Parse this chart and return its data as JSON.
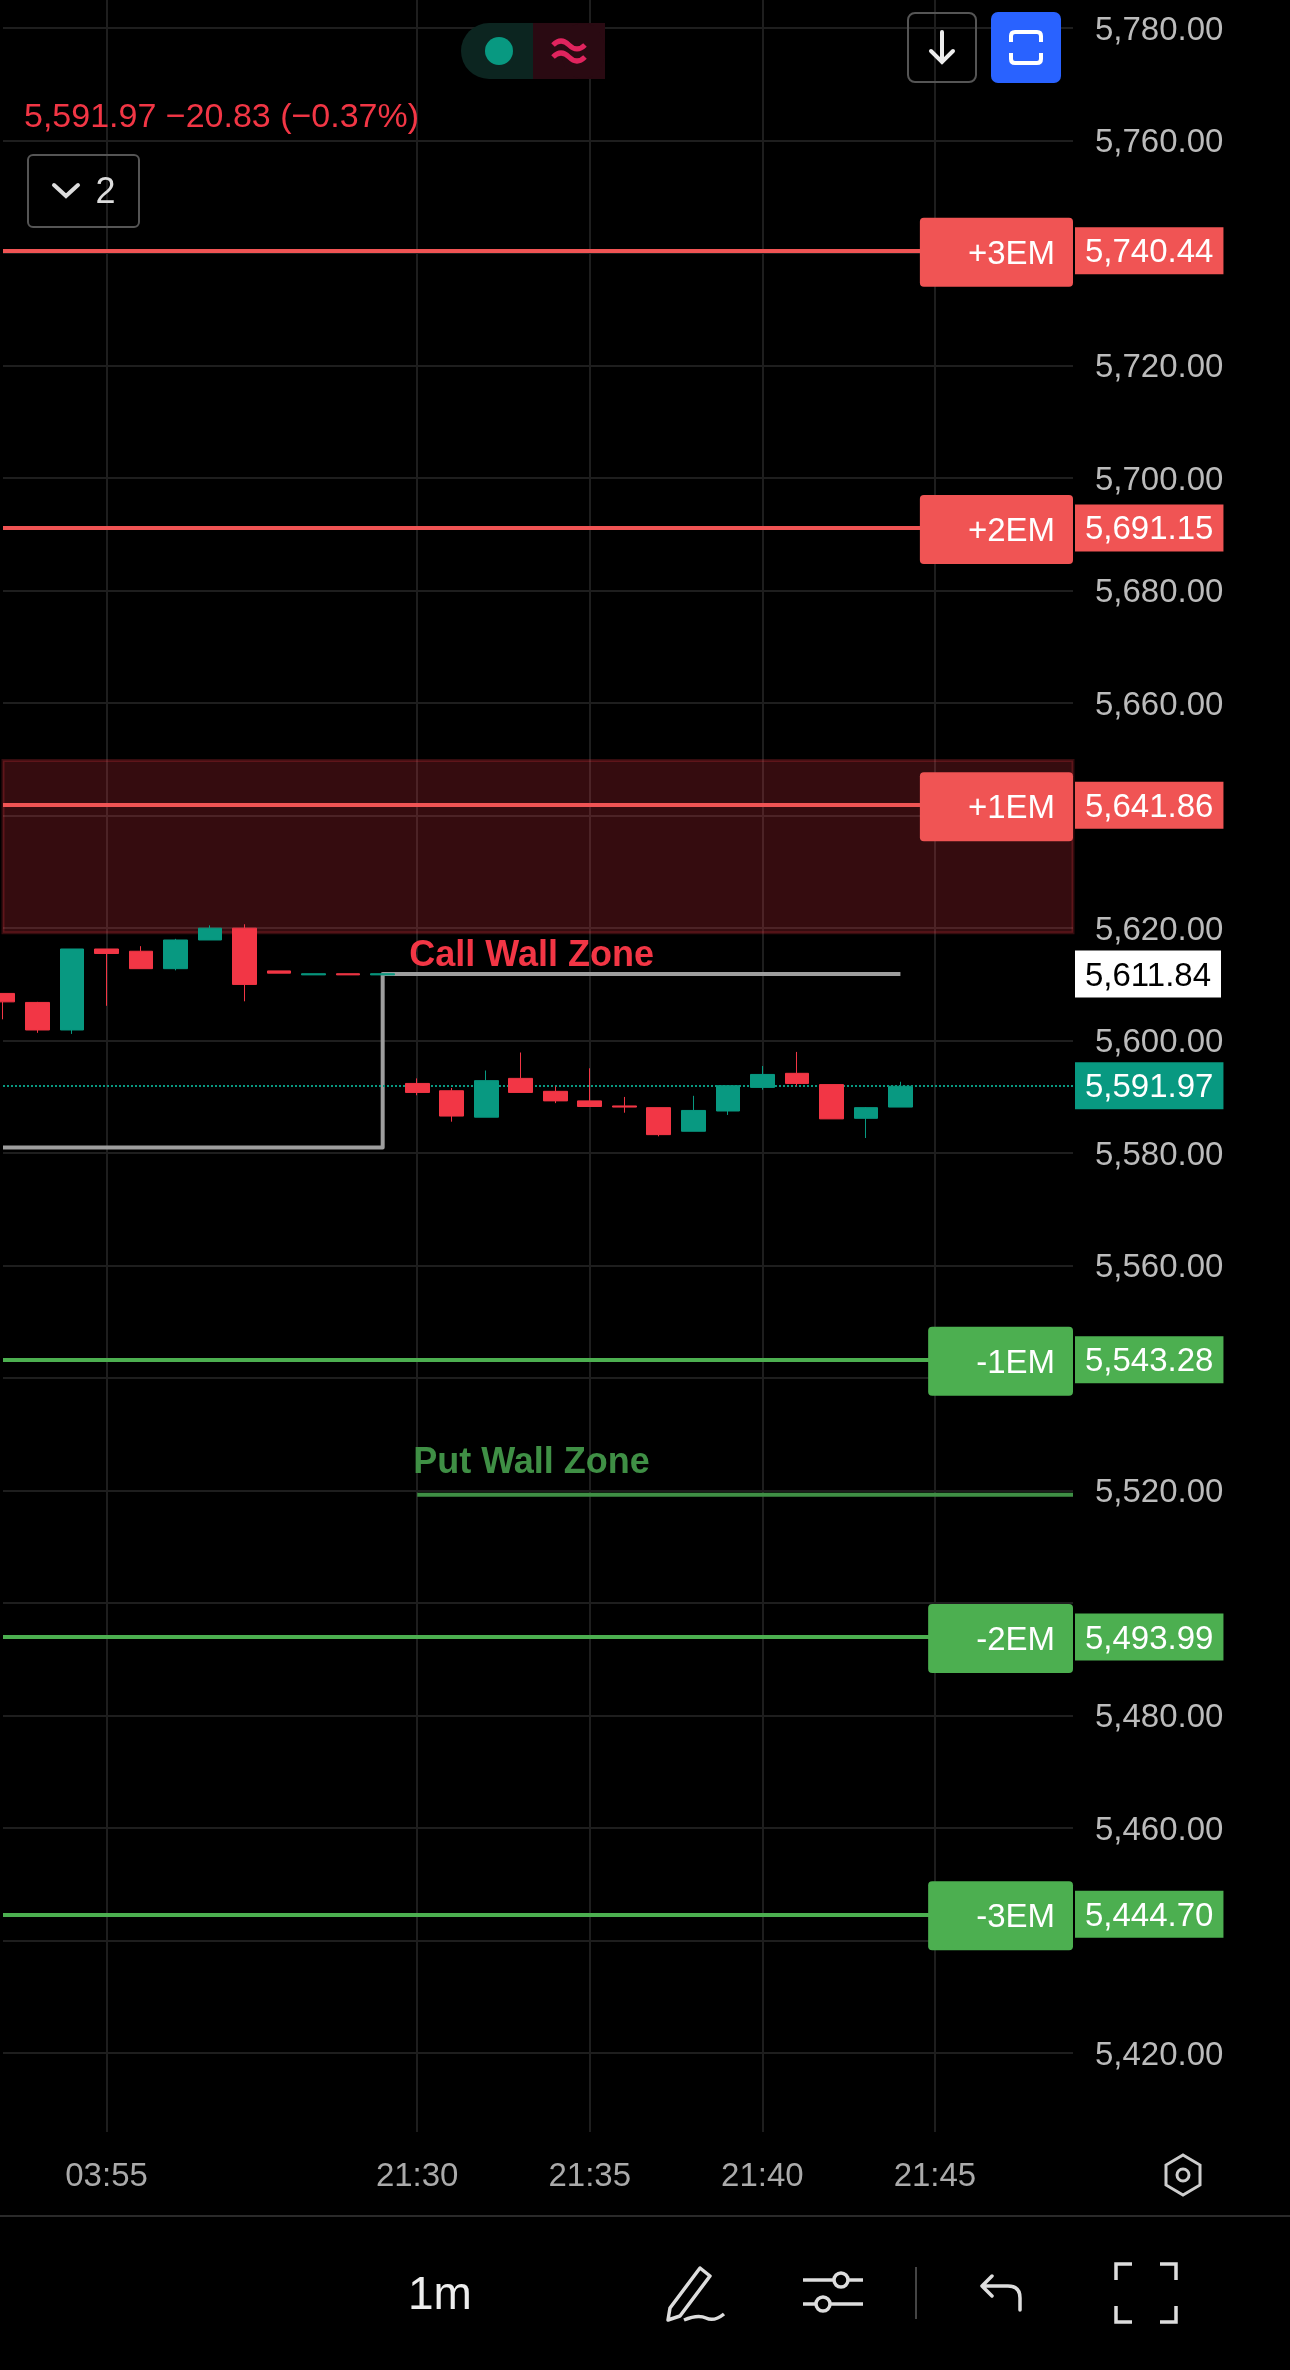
{
  "chart_data": {
    "type": "candlestick",
    "subtitle": "5,591.97 −20.83 (−0.37%)",
    "annotations": [
      "2",
      "1m",
      "5,740.44",
      "5,691.15",
      "5,641.86",
      "5,611.84",
      "5,591.97",
      "5,543.28",
      "5,493.99",
      "5,444.70"
    ],
    "categories": [
      null,
      null,
      null,
      "03:55",
      null,
      null,
      null,
      null,
      null,
      null,
      null,
      null,
      "21:30",
      null,
      null,
      null,
      null,
      "21:35",
      null,
      null,
      null,
      null,
      "21:40",
      null,
      null,
      null,
      null,
      "21:45",
      null,
      null,
      null,
      null
    ],
    "ohlc": [
      [
        5608.4,
        5608.4,
        5603.8,
        5606.9
      ],
      [
        5606.8,
        5606.9,
        5601.4,
        5601.9
      ],
      [
        5601.9,
        5616.3,
        5601.2,
        5616.3
      ],
      [
        5616.3,
        5616.3,
        5606.2,
        5615.5
      ],
      [
        5615.9,
        5616.8,
        5612.8,
        5612.8
      ],
      [
        5612.8,
        5618.1,
        5612.5,
        5617.9
      ],
      [
        5617.9,
        5620.5,
        5617.9,
        5620.0
      ],
      [
        5620.0,
        5620.7,
        5607.0,
        5610.0
      ],
      [
        5612.4,
        5612.4,
        5612.0,
        5612.0
      ],
      [
        5611.7,
        5611.9,
        5611.7,
        5611.9
      ],
      [
        5611.9,
        5611.9,
        5611.7,
        5611.7
      ],
      [
        5611.7,
        5611.9,
        5611.7,
        5611.9
      ],
      [
        5592.4,
        5593.3,
        5590.3,
        5590.8
      ],
      [
        5591.1,
        5591.6,
        5585.6,
        5586.6
      ],
      [
        5586.4,
        5594.7,
        5586.4,
        5592.9
      ],
      [
        5593.3,
        5597.9,
        5590.8,
        5590.8
      ],
      [
        5591.0,
        5591.9,
        5588.9,
        5589.3
      ],
      [
        5589.3,
        5595.1,
        5588.3,
        5588.3
      ],
      [
        5588.4,
        5590.0,
        5587.2,
        5588.2
      ],
      [
        5588.1,
        5588.1,
        5583.0,
        5583.3
      ],
      [
        5583.9,
        5590.2,
        5583.9,
        5587.6
      ],
      [
        5587.5,
        5592.0,
        5586.8,
        5592.0
      ],
      [
        5591.7,
        5595.5,
        5591.3,
        5594.0
      ],
      [
        5594.2,
        5598.0,
        5591.9,
        5592.4
      ],
      [
        5592.2,
        5592.2,
        5586.1,
        5586.1
      ],
      [
        5586.2,
        5588.2,
        5582.7,
        5588.1
      ],
      [
        5588.2,
        5592.7,
        5588.2,
        5591.9
      ],
      null,
      null,
      null,
      null,
      null
    ],
    "series": [
      {
        "type": "step",
        "color": "#9e9e9e",
        "values": [
          5581,
          5581,
          5581,
          5581,
          5581,
          5581,
          5581,
          5581,
          5581,
          5581,
          5581,
          5581,
          5611.84,
          5611.84,
          5611.84,
          5611.84,
          5611.84,
          5611.84,
          5611.84,
          5611.84,
          5611.84,
          5611.84,
          5611.84,
          5611.84,
          5611.84,
          5611.84,
          5611.84,
          null,
          null,
          null,
          null,
          null
        ]
      },
      {
        "type": "line",
        "name": "Put Wall Zone",
        "color": "#3f8f45",
        "values": [
          null,
          null,
          null,
          null,
          null,
          null,
          null,
          null,
          null,
          null,
          null,
          null,
          5519.3,
          5519.3,
          5519.3,
          5519.3,
          5519.3,
          5519.3,
          5519.3,
          5519.3,
          5519.3,
          5519.3,
          5519.3,
          5519.3,
          5519.3,
          5519.3,
          5519.3,
          5519.3,
          5519.3,
          5519.3,
          5519.3,
          5519.3
        ]
      }
    ],
    "ylim": [
      5406,
      5785
    ],
    "yticks": [
      {
        "value": 5420,
        "label": "5,420.00"
      },
      {
        "value": 5440,
        "label": null
      },
      {
        "value": 5460,
        "label": "5,460.00"
      },
      {
        "value": 5480,
        "label": "5,480.00"
      },
      {
        "value": 5500,
        "label": null
      },
      {
        "value": 5520,
        "label": "5,520.00"
      },
      {
        "value": 5540,
        "label": null
      },
      {
        "value": 5560,
        "label": "5,560.00"
      },
      {
        "value": 5580,
        "label": "5,580.00"
      },
      {
        "value": 5600,
        "label": "5,600.00"
      },
      {
        "value": 5620,
        "label": "5,620.00"
      },
      {
        "value": 5640,
        "label": null
      },
      {
        "value": 5660,
        "label": "5,660.00"
      },
      {
        "value": 5680,
        "label": "5,680.00"
      },
      {
        "value": 5700,
        "label": "5,700.00"
      },
      {
        "value": 5720,
        "label": "5,720.00"
      },
      {
        "value": 5740,
        "label": null
      },
      {
        "value": 5760,
        "label": "5,760.00"
      },
      {
        "value": 5780,
        "label": "5,780.00"
      }
    ],
    "ref_lines": [
      {
        "axis": "y",
        "value": 5740.44,
        "label": "+3EM",
        "color": "#f05454"
      },
      {
        "axis": "y",
        "value": 5691.15,
        "label": "+2EM",
        "color": "#f05454"
      },
      {
        "axis": "y",
        "value": 5641.86,
        "label": "+1EM",
        "color": "#f05454"
      },
      {
        "axis": "y",
        "value": 5543.28,
        "label": "-1EM",
        "color": "#4caf50"
      },
      {
        "axis": "y",
        "value": 5493.99,
        "label": "-2EM",
        "color": "#4caf50"
      },
      {
        "axis": "y",
        "value": 5444.7,
        "label": "-3EM",
        "color": "#4caf50"
      },
      {
        "axis": "y",
        "value": 5591.97,
        "color": "#089981",
        "line_style": "dotted"
      }
    ],
    "bands": [
      {
        "axis": "y",
        "from": 5619.2,
        "to": 5649.8,
        "label": "Call Wall Zone",
        "color": "#f23645"
      }
    ],
    "grid": true
  }
}
